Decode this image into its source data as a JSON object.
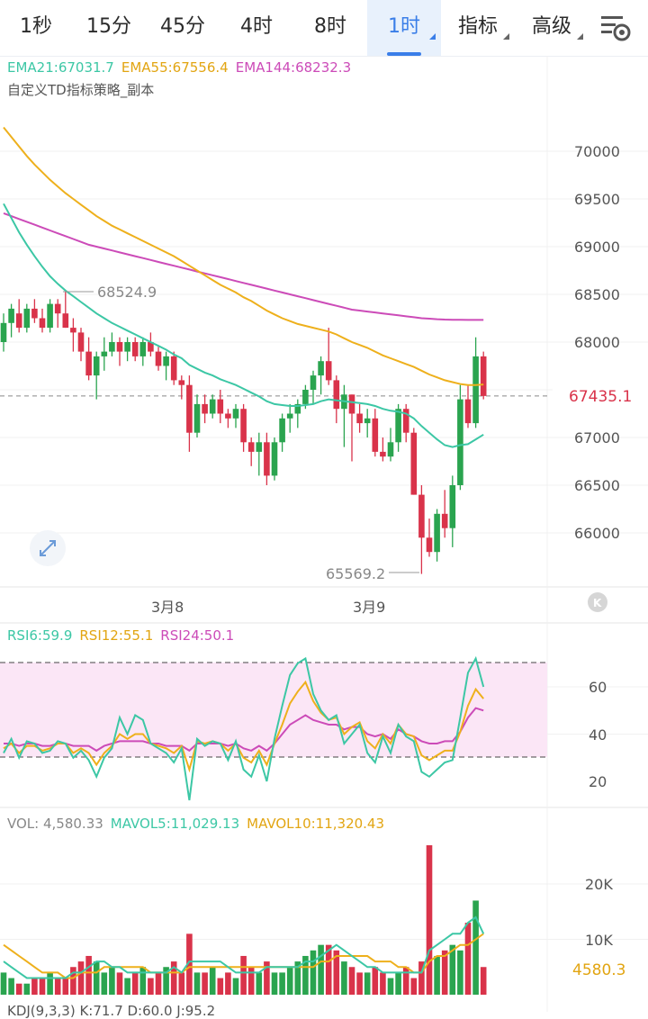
{
  "tabs": [
    {
      "label": "1秒"
    },
    {
      "label": "15分"
    },
    {
      "label": "45分"
    },
    {
      "label": "4时"
    },
    {
      "label": "8时"
    },
    {
      "label": "1时",
      "active": true
    },
    {
      "label": "指标"
    },
    {
      "label": "高级"
    }
  ],
  "ema": {
    "ema21": "EMA21:67031.7",
    "ema55": "EMA55:67556.4",
    "ema144": "EMA144:68232.3"
  },
  "strategy": "自定义TD指标策略_副本",
  "main_axis": {
    "ticks": [
      "70000",
      "69500",
      "69000",
      "68500",
      "68000",
      "67500",
      "67000",
      "66500",
      "66000"
    ],
    "price_tag": "67435.1"
  },
  "annotations": {
    "high": "68524.9",
    "low": "65569.2"
  },
  "dates": [
    "3月8",
    "3月9"
  ],
  "rsi": {
    "rsi6": "RSI6:59.9",
    "rsi12": "RSI12:55.1",
    "rsi24": "RSI24:50.1",
    "ticks": [
      "60",
      "40",
      "20"
    ]
  },
  "vol": {
    "vol": "VOL: 4,580.33",
    "mavol5": "MAVOL5:11,029.13",
    "mavol10": "MAVOL10:11,320.43",
    "ticks": [
      "20K",
      "10K"
    ],
    "tag": "4580.3"
  },
  "kdj": "KDJ(9,3,3) K:71.7 D:60.0 J:95.2",
  "colors": {
    "up": "#2aa44f",
    "down": "#d9334a",
    "ema21": "#3cc7a5",
    "ema55": "#eeb01c",
    "ema144": "#cc4bb8",
    "accent": "#3a7ee8"
  },
  "chart_data": {
    "type": "candlestick",
    "ylim": [
      65500,
      70300
    ],
    "candles": [
      [
        68000,
        68300,
        67900,
        68200
      ],
      [
        68200,
        68400,
        68050,
        68350
      ],
      [
        68300,
        68450,
        68100,
        68150
      ],
      [
        68150,
        68400,
        68100,
        68350
      ],
      [
        68350,
        68450,
        68200,
        68250
      ],
      [
        68250,
        68350,
        68100,
        68150
      ],
      [
        68150,
        68450,
        68100,
        68400
      ],
      [
        68400,
        68450,
        68150,
        68300
      ],
      [
        68300,
        68525,
        68150,
        68150
      ],
      [
        68150,
        68250,
        67900,
        68100
      ],
      [
        68100,
        68150,
        67800,
        67900
      ],
      [
        67900,
        68050,
        67600,
        67650
      ],
      [
        67650,
        67900,
        67400,
        67850
      ],
      [
        67850,
        68050,
        67700,
        67900
      ],
      [
        67900,
        68100,
        67850,
        68000
      ],
      [
        68000,
        68050,
        67750,
        67900
      ],
      [
        67900,
        68050,
        67800,
        68000
      ],
      [
        68000,
        68050,
        67800,
        67850
      ],
      [
        67850,
        68050,
        67750,
        68000
      ],
      [
        68000,
        68100,
        67850,
        67900
      ],
      [
        67900,
        67950,
        67700,
        67750
      ],
      [
        67750,
        67900,
        67600,
        67850
      ],
      [
        67850,
        67900,
        67550,
        67600
      ],
      [
        67600,
        67650,
        67400,
        67550
      ],
      [
        67550,
        67650,
        66850,
        67050
      ],
      [
        67050,
        67450,
        67000,
        67350
      ],
      [
        67350,
        67450,
        67150,
        67250
      ],
      [
        67250,
        67450,
        67200,
        67400
      ],
      [
        67400,
        67500,
        67150,
        67250
      ],
      [
        67250,
        67300,
        67100,
        67200
      ],
      [
        67200,
        67350,
        67100,
        67300
      ],
      [
        67300,
        67350,
        66850,
        66950
      ],
      [
        66950,
        67000,
        66700,
        66850
      ],
      [
        66850,
        67050,
        66600,
        66950
      ],
      [
        66950,
        67050,
        66500,
        66600
      ],
      [
        66600,
        67000,
        66550,
        66950
      ],
      [
        66950,
        67250,
        66850,
        67200
      ],
      [
        67200,
        67350,
        67050,
        67250
      ],
      [
        67250,
        67400,
        67100,
        67350
      ],
      [
        67350,
        67550,
        67300,
        67500
      ],
      [
        67500,
        67700,
        67350,
        67650
      ],
      [
        67650,
        67850,
        67450,
        67800
      ],
      [
        67800,
        68150,
        67550,
        67600
      ],
      [
        67600,
        67650,
        67150,
        67300
      ],
      [
        67300,
        67550,
        66900,
        67450
      ],
      [
        67450,
        67450,
        66750,
        67250
      ],
      [
        67250,
        67350,
        67050,
        67150
      ],
      [
        67150,
        67300,
        67000,
        67200
      ],
      [
        67200,
        67300,
        66800,
        66850
      ],
      [
        66850,
        67000,
        66750,
        66800
      ],
      [
        66800,
        67100,
        66750,
        66950
      ],
      [
        66950,
        67350,
        66850,
        67300
      ],
      [
        67300,
        67350,
        66950,
        67050
      ],
      [
        67050,
        67100,
        66400,
        66400
      ],
      [
        66400,
        66500,
        65570,
        65950
      ],
      [
        65950,
        66150,
        65750,
        65800
      ],
      [
        65800,
        66250,
        65700,
        66200
      ],
      [
        66200,
        66450,
        65950,
        66050
      ],
      [
        66050,
        66600,
        65850,
        66500
      ],
      [
        66500,
        67550,
        66450,
        67400
      ],
      [
        67400,
        67550,
        67100,
        67150
      ],
      [
        67150,
        68050,
        67100,
        67850
      ],
      [
        67850,
        67900,
        67400,
        67435
      ]
    ],
    "ema21": [
      69450,
      69300,
      69150,
      69020,
      68900,
      68790,
      68690,
      68610,
      68540,
      68480,
      68420,
      68360,
      68300,
      68250,
      68200,
      68160,
      68120,
      68080,
      68040,
      68000,
      67960,
      67920,
      67870,
      67830,
      67760,
      67720,
      67680,
      67650,
      67610,
      67580,
      67550,
      67510,
      67470,
      67430,
      67380,
      67350,
      67340,
      67330,
      67330,
      67340,
      67350,
      67380,
      67400,
      67390,
      67380,
      67370,
      67360,
      67350,
      67330,
      67300,
      67280,
      67270,
      67250,
      67200,
      67120,
      67050,
      66980,
      66920,
      66900,
      66920,
      66930,
      66980,
      67030
    ],
    "ema55": [
      70250,
      70150,
      70050,
      69950,
      69860,
      69780,
      69700,
      69630,
      69560,
      69500,
      69440,
      69380,
      69320,
      69270,
      69220,
      69180,
      69140,
      69100,
      69060,
      69020,
      68980,
      68940,
      68900,
      68850,
      68800,
      68750,
      68700,
      68650,
      68600,
      68560,
      68520,
      68470,
      68430,
      68380,
      68330,
      68290,
      68250,
      68220,
      68190,
      68170,
      68150,
      68130,
      68110,
      68080,
      68040,
      68000,
      67970,
      67940,
      67900,
      67860,
      67830,
      67800,
      67770,
      67740,
      67700,
      67660,
      67630,
      67600,
      67580,
      67560,
      67550,
      67550,
      67556
    ],
    "ema144": [
      69350,
      69320,
      69290,
      69260,
      69230,
      69200,
      69170,
      69140,
      69110,
      69080,
      69050,
      69020,
      69000,
      68980,
      68960,
      68940,
      68920,
      68900,
      68880,
      68860,
      68840,
      68820,
      68800,
      68780,
      68760,
      68740,
      68720,
      68700,
      68680,
      68660,
      68640,
      68620,
      68600,
      68580,
      68560,
      68540,
      68520,
      68500,
      68480,
      68460,
      68440,
      68420,
      68400,
      68380,
      68360,
      68340,
      68330,
      68320,
      68310,
      68300,
      68290,
      68280,
      68270,
      68260,
      68250,
      68245,
      68240,
      68236,
      68234,
      68233,
      68232,
      68232,
      68232
    ],
    "rsi6": [
      32,
      38,
      30,
      37,
      36,
      32,
      33,
      37,
      36,
      30,
      33,
      29,
      22,
      30,
      34,
      47,
      40,
      48,
      46,
      36,
      34,
      32,
      28,
      34,
      12,
      38,
      35,
      37,
      36,
      29,
      37,
      25,
      22,
      31,
      20,
      38,
      52,
      65,
      70,
      72,
      57,
      50,
      46,
      48,
      36,
      40,
      44,
      32,
      28,
      39,
      32,
      44,
      39,
      37,
      24,
      22,
      25,
      28,
      29,
      47,
      66,
      72,
      60
    ],
    "rsi12": [
      34,
      36,
      32,
      35,
      35,
      33,
      34,
      36,
      36,
      32,
      34,
      32,
      27,
      32,
      35,
      40,
      38,
      40,
      40,
      36,
      35,
      34,
      32,
      35,
      25,
      37,
      36,
      37,
      36,
      33,
      36,
      30,
      28,
      33,
      27,
      36,
      44,
      53,
      58,
      62,
      54,
      49,
      46,
      47,
      40,
      43,
      45,
      37,
      34,
      40,
      36,
      44,
      40,
      39,
      31,
      29,
      31,
      33,
      33,
      41,
      52,
      59,
      55
    ],
    "rsi24": [
      36,
      36,
      35,
      36,
      36,
      35,
      35,
      36,
      36,
      35,
      35,
      35,
      33,
      35,
      36,
      37,
      37,
      37,
      37,
      36,
      36,
      35,
      35,
      35,
      33,
      36,
      36,
      36,
      36,
      35,
      36,
      34,
      33,
      35,
      33,
      36,
      40,
      44,
      46,
      48,
      46,
      45,
      44,
      44,
      42,
      43,
      43,
      40,
      39,
      40,
      38,
      42,
      40,
      39,
      37,
      36,
      36,
      37,
      37,
      41,
      47,
      51,
      50
    ],
    "volume": [
      4,
      3,
      2,
      2,
      3,
      3,
      4,
      3,
      3,
      5,
      6,
      7,
      6,
      4,
      5,
      4,
      3,
      4,
      5,
      3,
      4,
      5,
      6,
      4,
      11,
      4,
      4,
      5,
      3,
      4,
      3,
      7,
      5,
      4,
      6,
      4,
      4,
      5,
      6,
      7,
      8,
      9,
      9,
      8,
      6,
      5,
      4,
      4,
      5,
      4,
      3,
      4,
      5,
      3,
      6,
      27,
      7,
      8,
      9,
      8,
      13,
      17,
      5
    ],
    "mavol5": [
      6,
      5,
      4,
      3,
      3,
      3,
      3,
      3,
      3,
      4,
      4,
      5,
      6,
      6,
      5,
      5,
      4,
      4,
      4,
      4,
      4,
      4,
      5,
      4,
      6,
      6,
      6,
      6,
      6,
      5,
      4,
      4,
      4,
      4,
      5,
      5,
      5,
      5,
      5,
      6,
      6,
      7,
      8,
      9,
      8,
      7,
      6,
      5,
      5,
      4,
      4,
      4,
      4,
      4,
      4,
      8,
      9,
      10,
      11,
      11,
      13,
      14,
      11
    ],
    "mavol10": [
      9,
      8,
      7,
      6,
      5,
      4,
      4,
      4,
      3,
      3,
      4,
      4,
      4,
      5,
      5,
      5,
      5,
      5,
      5,
      4,
      4,
      4,
      4,
      4,
      5,
      5,
      5,
      5,
      5,
      5,
      5,
      5,
      5,
      5,
      5,
      5,
      5,
      5,
      5,
      5,
      5,
      6,
      6,
      7,
      7,
      7,
      7,
      7,
      6,
      6,
      6,
      5,
      5,
      4,
      4,
      6,
      7,
      7,
      8,
      9,
      9,
      10,
      11
    ]
  }
}
